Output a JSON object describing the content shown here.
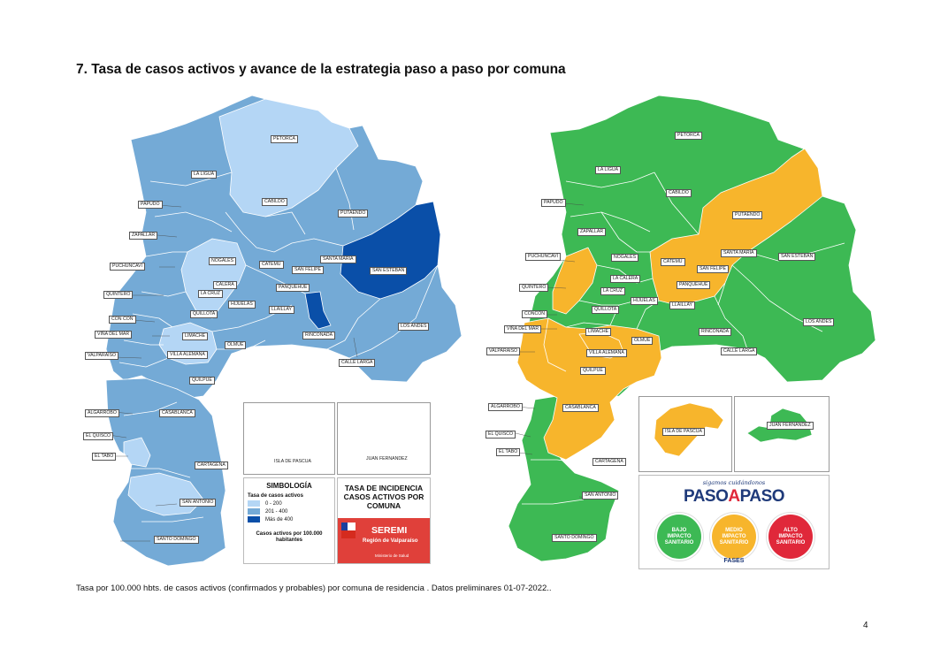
{
  "title": "7. Tasa de casos activos y avance de la estrategia paso a paso por comuna",
  "footnote": "Tasa por 100.000 hbts. de casos activos (confirmados y probables) por comuna de residencia . Datos preliminares 01-07-2022..",
  "page_number": "4",
  "colors": {
    "rate_low": "#b4d6f5",
    "rate_mid": "#74aad6",
    "rate_high": "#0a4fa8",
    "phase_green": "#3db954",
    "phase_yellow": "#f7b52c",
    "phase_red": "#e0283a"
  },
  "left_map": {
    "labels": {
      "petorca": "PETORCA",
      "la_ligua": "LA LIGUA",
      "cabildo": "CABILDO",
      "papudo": "PAPUDO",
      "zapallar": "ZAPALLAR",
      "putaendo": "PUTAENDO",
      "puchuncavi": "PUCHUNCAVI",
      "nogales": "NOGALES",
      "catemu": "CATEMU",
      "santa_maria": "SANTA MARIA",
      "san_esteban": "SAN ESTEBAN",
      "san_felipe": "SAN FELIPE",
      "calera": "CALERA",
      "quintero": "QUINTERO",
      "la_cruz": "LA CRUZ",
      "panquehue": "PANQUEHUE",
      "hijuelas": "HIJUELAS",
      "llaillay": "LLAILLAY",
      "quillota": "QUILLOTA",
      "con_con": "CON CON",
      "limache": "LIMACHE",
      "rinconada": "RINCONADA",
      "los_andes": "LOS ANDES",
      "vina_del_mar": "VIÑA DEL MAR",
      "olmue": "OLMUE",
      "valparaiso": "VALPARAISO",
      "villa_alemana": "VILLA ALEMANA",
      "calle_larga": "CALLE LARGA",
      "quilpue": "QUILPUE",
      "algarrobo": "ALGARROBO",
      "casablanca": "CASABLANCA",
      "el_quisco": "EL QUISCO",
      "el_tabo": "EL TABO",
      "cartagena": "CARTAGENA",
      "san_antonio": "SAN ANTONIO",
      "santo_domingo": "SANTO DOMINGO",
      "isla_de_pascua": "ISLA DE PASCUA",
      "juan_fernandez": "JUAN FERNANDEZ"
    },
    "legend": {
      "title": "SIMBOLOGÍA",
      "subtitle": "Tasa de casos activos",
      "items": [
        {
          "label": "0 - 200",
          "color": "#b4d6f5"
        },
        {
          "label": "201 - 400",
          "color": "#74aad6"
        },
        {
          "label": "Más de 400",
          "color": "#0a4fa8"
        }
      ],
      "footer": "Casos activos por 100.000 habitantes"
    },
    "info_box": {
      "title": "TASA DE INCIDENCIA CASOS ACTIVOS POR COMUNA",
      "seremi": "SEREMI",
      "region": "Región de Valparaíso",
      "ministry": "Ministerio de Salud"
    }
  },
  "right_map": {
    "labels": {
      "petorca": "PETORCA",
      "la_ligua": "LA LIGUA",
      "cabildo": "CABILDO",
      "papudo": "PAPUDO",
      "zapallar": "ZAPALLAR",
      "putaendo": "PUTAENDO",
      "puchuncavi": "PUCHUNCAVÍ",
      "nogales": "NOGALES",
      "catemu": "CATEMU",
      "santa_maria": "SANTA MARÍA",
      "san_esteban": "SAN ESTEBAN",
      "san_felipe": "SAN FELIPE",
      "quintero": "QUINTERO",
      "la_calera": "LA CALERA",
      "la_cruz": "LA CRUZ",
      "panquehue": "PANQUEHUE",
      "hijuelas": "HIJUELAS",
      "llaillay": "LLAILLAY",
      "quillota": "QUILLOTA",
      "concon": "CONCÓN",
      "limache": "LIMACHE",
      "los_andes": "LOS ANDES",
      "vina_del_mar": "VIÑA DEL MAR",
      "olmue": "OLMUÉ",
      "rinconada": "RINCONADA",
      "valparaiso": "VALPARAÍSO",
      "villa_alemana": "VILLA ALEMANA",
      "calle_larga": "CALLE LARGA",
      "quilpue": "QUILPUÉ",
      "algarrobo": "ALGARROBO",
      "casablanca": "CASABLANCA",
      "el_quisco": "EL QUISCO",
      "el_tabo": "EL TABO",
      "cartagena": "CARTAGENA",
      "san_antonio": "SAN ANTONIO",
      "santo_domingo": "SANTO DOMINGO",
      "isla_de_pascua": "ISLA DE PASCUA",
      "juan_fernandez": "JUAN FERNÁNDEZ"
    },
    "paso_a_paso": {
      "tagline": "sigamos cuidándonos",
      "logo_paso": "PASO",
      "logo_a": "A",
      "logo_paso2": "PASO",
      "phases": [
        {
          "label": "BAJO IMPACTO SANITARIO",
          "color": "#3db954"
        },
        {
          "label": "MEDIO IMPACTO SANITARIO",
          "color": "#f7b52c"
        },
        {
          "label": "ALTO IMPACTO SANITARIO",
          "color": "#e0283a"
        }
      ],
      "footer": "FASES"
    }
  }
}
